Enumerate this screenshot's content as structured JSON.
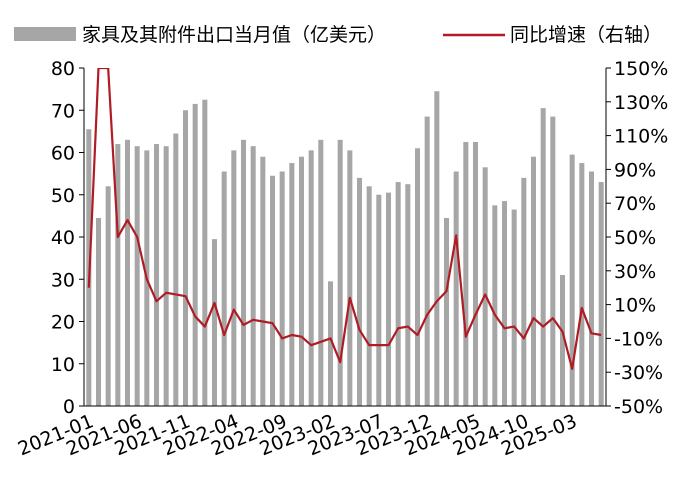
{
  "chart_data": {
    "type": "bar+line",
    "title": "",
    "x": [
      "2021-01",
      "2021-02",
      "2021-03",
      "2021-04",
      "2021-05",
      "2021-06",
      "2021-07",
      "2021-08",
      "2021-09",
      "2021-10",
      "2021-11",
      "2021-12",
      "2022-01",
      "2022-02",
      "2022-03",
      "2022-04",
      "2022-05",
      "2022-06",
      "2022-07",
      "2022-08",
      "2022-09",
      "2022-10",
      "2022-11",
      "2022-12",
      "2023-01",
      "2023-02",
      "2023-03",
      "2023-04",
      "2023-05",
      "2023-06",
      "2023-07",
      "2023-08",
      "2023-09",
      "2023-10",
      "2023-11",
      "2023-12",
      "2024-01",
      "2024-02",
      "2024-03",
      "2024-04",
      "2024-05",
      "2024-06",
      "2024-07",
      "2024-08",
      "2024-09",
      "2024-10",
      "2024-11",
      "2024-12",
      "2025-01",
      "2025-02",
      "2025-03",
      "2025-04",
      "2025-05",
      "2025-06"
    ],
    "x_tick_labels": [
      "2021-01",
      "2021-06",
      "2021-11",
      "2022-04",
      "2022-09",
      "2023-02",
      "2023-07",
      "2023-12",
      "2024-05",
      "2024-10",
      "2025-03"
    ],
    "series": [
      {
        "name": "家具及其附件出口当月值（亿美元）",
        "type": "bar",
        "axis": "left",
        "color": "#a6a6a6",
        "values": [
          65.5,
          44.5,
          52,
          62,
          63,
          61.5,
          60.5,
          62,
          61.5,
          64.5,
          70,
          71.5,
          72.5,
          39.5,
          55.5,
          60.5,
          63,
          61.5,
          59,
          54.5,
          55.5,
          57.5,
          59,
          60.5,
          63,
          29.5,
          63,
          60.5,
          54,
          52,
          50,
          50.5,
          53,
          52.5,
          61,
          68.5,
          74.5,
          44.5,
          55.5,
          62.5,
          62.5,
          56.5,
          47.5,
          48.5,
          46.5,
          54,
          59,
          70.5,
          68.5,
          31,
          59.5,
          57.5,
          55.5,
          53
        ]
      },
      {
        "name": "同比增速（右轴）",
        "type": "line",
        "axis": "right",
        "color": "#b01c24",
        "values": [
          20,
          150,
          150,
          50,
          60,
          50,
          25,
          12,
          17,
          16,
          15,
          3,
          -3,
          11,
          -8,
          7,
          -2,
          1,
          0,
          -1,
          -10,
          -8,
          -9,
          -14,
          -12,
          -10,
          -24,
          14,
          -5,
          -14,
          -14,
          -14,
          -4,
          -3,
          -8,
          4,
          12,
          18,
          51,
          -9,
          4,
          16,
          4,
          -4,
          -3,
          -10,
          2,
          -3,
          2,
          -6,
          -28,
          8,
          -7,
          -8
        ]
      }
    ],
    "y_left": {
      "min": 0,
      "max": 80,
      "ticks": [
        "0",
        "10",
        "20",
        "30",
        "40",
        "50",
        "60",
        "70",
        "80"
      ]
    },
    "y_right": {
      "min": -50,
      "max": 150,
      "ticks": [
        "-50%",
        "-30%",
        "-10%",
        "10%",
        "30%",
        "50%",
        "70%",
        "90%",
        "110%",
        "130%",
        "150%"
      ]
    },
    "legend_position": "top",
    "grid": false
  }
}
